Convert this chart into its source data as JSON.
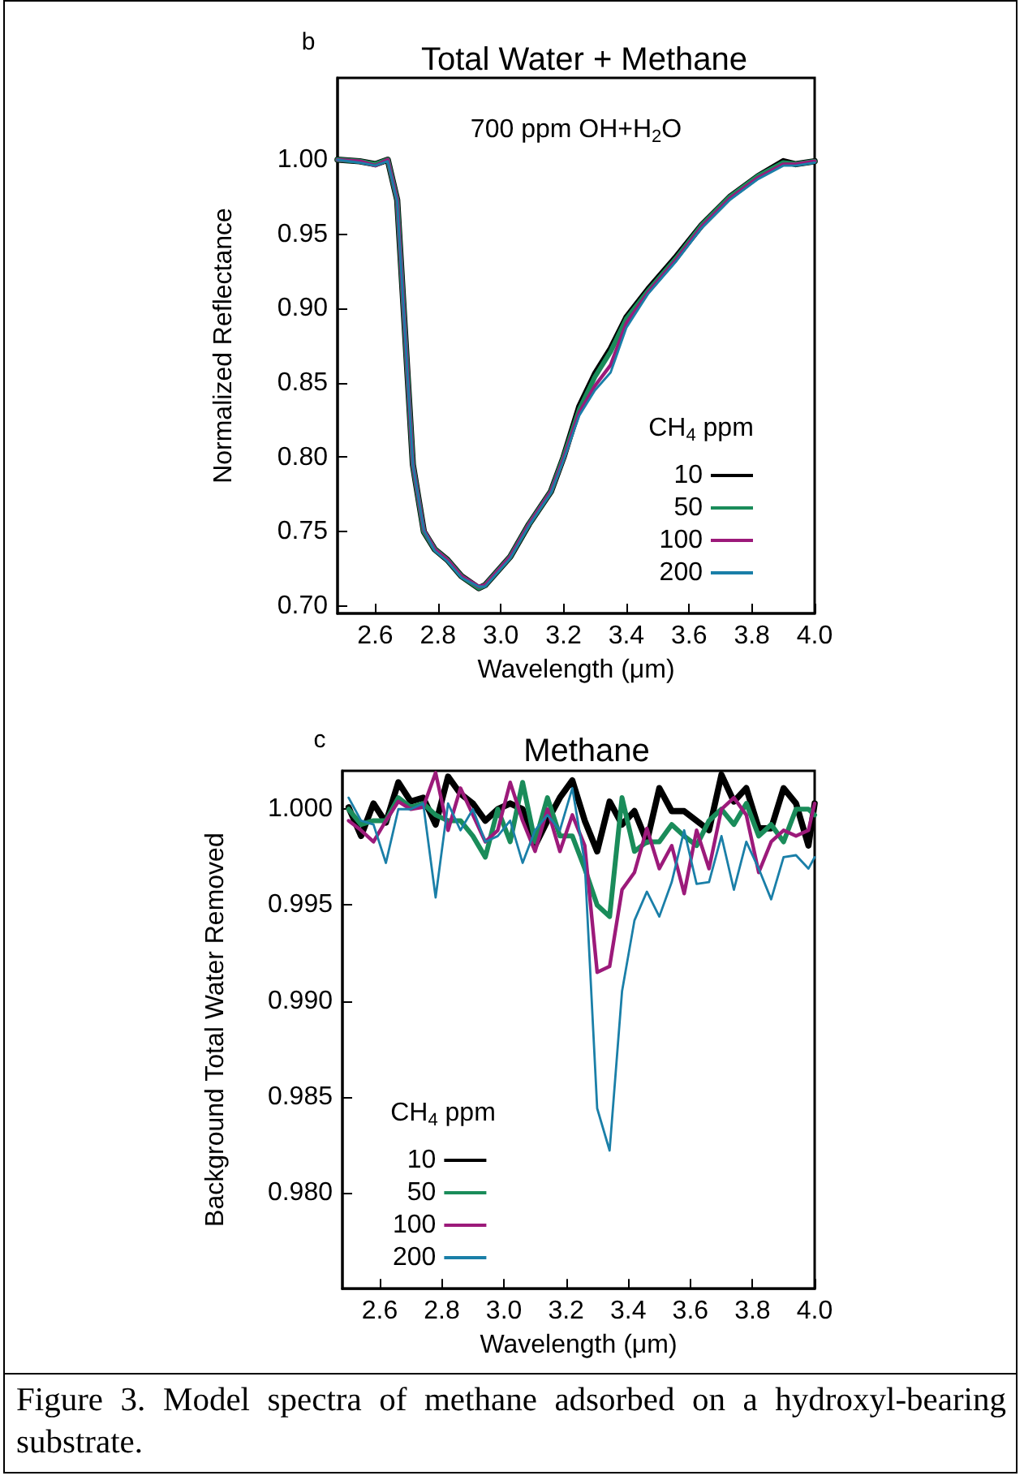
{
  "chart_data": [
    {
      "type": "line",
      "title": "Total Water + Methane",
      "xlabel": "Wavelength (μm)",
      "ylabel": "Normalized Reflectance",
      "legend_title": "CH$_{4}$ ppm",
      "legend": "bottom right",
      "annotations": [
        "b",
        "700 ppm OH+H$_{2}$O"
      ],
      "x": [
        2.48,
        2.55,
        2.6,
        2.64,
        2.67,
        2.72,
        2.755,
        2.79,
        2.83,
        2.875,
        2.93,
        2.95,
        3.03,
        3.09,
        3.16,
        3.2,
        3.25,
        3.3,
        3.35,
        3.4,
        3.47,
        3.56,
        3.64,
        3.73,
        3.82,
        3.9,
        3.94,
        4.0
      ],
      "xlim": [
        2.48,
        4.0
      ],
      "xticks": [
        {
          "value": 2.6,
          "label": "2.6"
        },
        {
          "value": 2.8,
          "label": "2.8"
        },
        {
          "value": 3.0,
          "label": "3.0"
        },
        {
          "value": 3.2,
          "label": "3.2"
        },
        {
          "value": 3.4,
          "label": "3.4"
        },
        {
          "value": 3.6,
          "label": "3.6"
        },
        {
          "value": 3.8,
          "label": "3.8"
        },
        {
          "value": 4.0,
          "label": "4.0"
        }
      ],
      "ylim": [
        0.695,
        1.055
      ],
      "yticks": [
        {
          "value": 0.7,
          "label": "0.70"
        },
        {
          "value": 0.75,
          "label": "0.75"
        },
        {
          "value": 0.8,
          "label": "0.80"
        },
        {
          "value": 0.85,
          "label": "0.85"
        },
        {
          "value": 0.9,
          "label": "0.90"
        },
        {
          "value": 0.95,
          "label": "0.95"
        },
        {
          "value": 1.0,
          "label": "1.00"
        }
      ],
      "series": [
        {
          "name": "10",
          "color": "#000000",
          "values": [
            1.0,
            0.999,
            0.997,
            1.0,
            0.973,
            0.795,
            0.75,
            0.738,
            0.731,
            0.72,
            0.712,
            0.714,
            0.733,
            0.755,
            0.777,
            0.8,
            0.834,
            0.856,
            0.873,
            0.894,
            0.913,
            0.935,
            0.956,
            0.975,
            0.989,
            0.999,
            0.997,
            0.999
          ]
        },
        {
          "name": "50",
          "color": "#1a8c5a",
          "values": [
            1.0,
            0.999,
            0.997,
            1.0,
            0.973,
            0.795,
            0.75,
            0.738,
            0.731,
            0.72,
            0.712,
            0.714,
            0.733,
            0.755,
            0.777,
            0.8,
            0.832,
            0.854,
            0.871,
            0.893,
            0.912,
            0.934,
            0.956,
            0.975,
            0.989,
            0.998,
            0.997,
            0.999
          ]
        },
        {
          "name": "100",
          "color": "#9c1a7a",
          "values": [
            1.0,
            0.999,
            0.996,
            1.0,
            0.973,
            0.795,
            0.751,
            0.738,
            0.731,
            0.72,
            0.713,
            0.714,
            0.733,
            0.755,
            0.777,
            0.799,
            0.83,
            0.848,
            0.862,
            0.89,
            0.911,
            0.933,
            0.955,
            0.974,
            0.988,
            0.997,
            0.997,
            0.999
          ]
        },
        {
          "name": "200",
          "color": "#1a7fa8",
          "values": [
            1.0,
            0.998,
            0.996,
            0.999,
            0.972,
            0.795,
            0.751,
            0.737,
            0.73,
            0.719,
            0.713,
            0.713,
            0.732,
            0.754,
            0.776,
            0.798,
            0.828,
            0.845,
            0.857,
            0.887,
            0.91,
            0.932,
            0.954,
            0.973,
            0.987,
            0.996,
            0.996,
            0.998
          ]
        }
      ]
    },
    {
      "type": "line",
      "title": "Methane",
      "xlabel": "Wavelength (μm)",
      "ylabel": "Background Total Water Removed",
      "legend_title": "CH$_{4}$ ppm",
      "legend": "bottom left",
      "annotations": [
        "c",
        "Figure 3.  Model spectra of methane adsorbed on a hydroxyl-bearing substrate."
      ],
      "x": [
        2.5,
        2.54,
        2.58,
        2.62,
        2.66,
        2.7,
        2.74,
        2.78,
        2.82,
        2.86,
        2.9,
        2.94,
        2.98,
        3.02,
        3.06,
        3.1,
        3.14,
        3.18,
        3.22,
        3.26,
        3.3,
        3.34,
        3.38,
        3.42,
        3.46,
        3.5,
        3.54,
        3.58,
        3.62,
        3.66,
        3.7,
        3.74,
        3.78,
        3.82,
        3.86,
        3.9,
        3.94,
        3.98,
        4.0
      ],
      "xlim": [
        2.48,
        4.0
      ],
      "xticks": [
        {
          "value": 2.6,
          "label": "2.6"
        },
        {
          "value": 2.8,
          "label": "2.8"
        },
        {
          "value": 3.0,
          "label": "3.0"
        },
        {
          "value": 3.2,
          "label": "3.2"
        },
        {
          "value": 3.4,
          "label": "3.4"
        },
        {
          "value": 3.6,
          "label": "3.6"
        },
        {
          "value": 3.8,
          "label": "3.8"
        },
        {
          "value": 4.0,
          "label": "4.0"
        }
      ],
      "ylim": [
        0.975,
        1.002
      ],
      "yticks": [
        {
          "value": 0.98,
          "label": "0.980"
        },
        {
          "value": 0.985,
          "label": "0.985"
        },
        {
          "value": 0.99,
          "label": "0.990"
        },
        {
          "value": 0.995,
          "label": "0.995"
        },
        {
          "value": 1.0,
          "label": "1.000"
        }
      ],
      "series": [
        {
          "name": "10",
          "color": "#000000",
          "values": [
            1.0001,
            0.9986,
            1.0003,
            0.9993,
            1.0014,
            1.0004,
            1.0006,
            0.9992,
            1.0017,
            1.0008,
            1.0003,
            0.9994,
            1.0,
            1.0003,
            1.0,
            0.9981,
            0.9994,
            1.0006,
            1.0015,
            0.9994,
            0.9978,
            1.0004,
            0.9992,
            0.9999,
            0.9983,
            1.0011,
            0.9999,
            0.9999,
            0.9994,
            0.9989,
            1.0018,
            1.0004,
            1.0011,
            0.999,
            0.999,
            1.0011,
            1.0003,
            0.9981,
            1.0003
          ]
        },
        {
          "name": "50",
          "color": "#1a8c5a",
          "values": [
            1.0,
            0.9992,
            0.9994,
            0.9994,
            1.0006,
            1.0001,
            1.0003,
            0.9997,
            0.9994,
            0.9994,
            0.9986,
            0.9975,
            1.0,
            0.9983,
            1.0014,
            0.9983,
            1.0006,
            0.9986,
            0.9986,
            0.9969,
            0.995,
            0.9944,
            1.0006,
            0.9978,
            0.9983,
            0.9983,
            0.9992,
            0.9986,
            0.9981,
            0.9994,
            1.0,
            0.9992,
            1.0003,
            0.9986,
            0.9992,
            0.9983,
            1.0,
            1.0,
            0.9997
          ]
        },
        {
          "name": "100",
          "color": "#9c1a7a",
          "values": [
            0.9994,
            0.9989,
            0.9983,
            0.9994,
            1.0004,
            1.0,
            1.0001,
            1.0019,
            0.9989,
            1.0011,
            0.9997,
            0.9983,
            0.9989,
            1.0014,
            0.9994,
            0.9978,
            1.0,
            0.9978,
            0.9997,
            0.9981,
            0.9915,
            0.9918,
            0.9958,
            0.9967,
            0.999,
            0.9969,
            0.9981,
            0.9956,
            0.9989,
            0.9969,
            1.0,
            1.0006,
            0.9997,
            0.9967,
            0.9983,
            0.9989,
            0.9986,
            0.9989,
            1.0003
          ]
        },
        {
          "name": "200",
          "color": "#1a7fa8",
          "values": [
            1.0006,
            0.9994,
            0.9992,
            0.9972,
            1.0,
            1.0,
            1.0003,
            0.9954,
            1.0003,
            0.9989,
            1.0,
            0.9983,
            0.9986,
            0.9994,
            0.9972,
            0.9989,
            0.9997,
            0.9989,
            1.0011,
            0.9972,
            0.9844,
            0.9822,
            0.9905,
            0.9942,
            0.9957,
            0.9944,
            0.9962,
            0.9989,
            0.9961,
            0.9962,
            0.9986,
            0.9958,
            0.9983,
            0.9969,
            0.9953,
            0.9975,
            0.9976,
            0.9969,
            0.9975
          ]
        }
      ]
    }
  ]
}
